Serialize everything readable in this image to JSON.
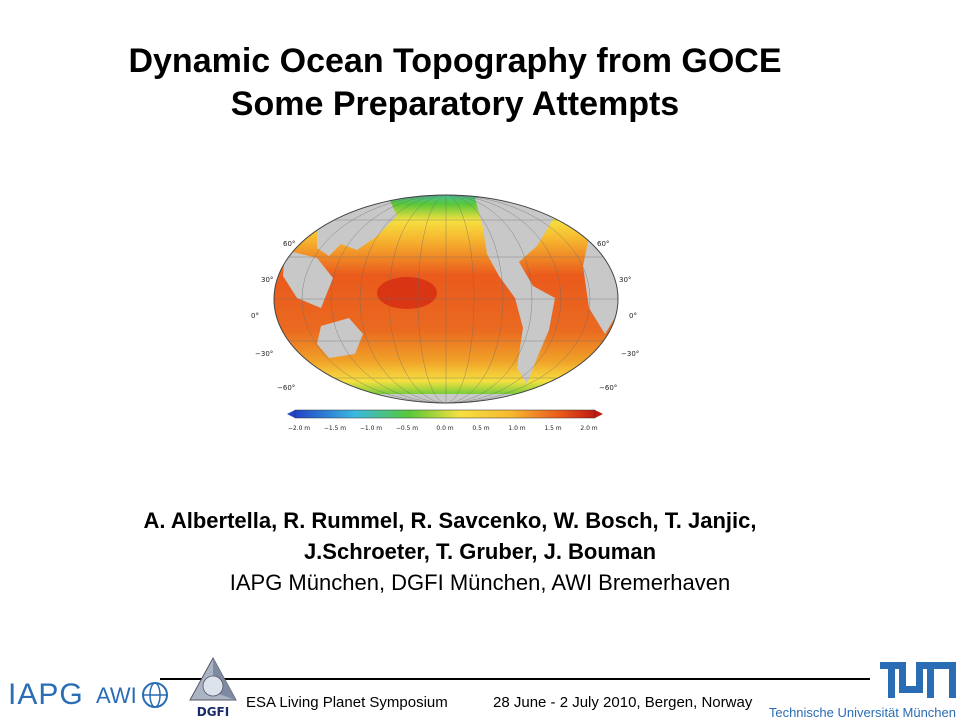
{
  "slide": {
    "title_lines": [
      "Dynamic Ocean Topography from GOCE",
      "Some Preparatory Attempts"
    ],
    "authors_lines": [
      "A. Albertella, R. Rummel, R. Savcenko, W. Bosch, T. Janjic,",
      "J.Schroeter, T. Gruber, J. Bouman"
    ],
    "affiliations": "IAPG München, DGFI München, AWI Bremerhaven"
  },
  "map": {
    "lat_labels": [
      "60°",
      "30°",
      "0°",
      "−30°",
      "−60°"
    ],
    "colorbar_ticks": [
      "−2.0 m",
      "−1.5 m",
      "−1.0 m",
      "−0.5 m",
      "0.0 m",
      "0.5 m",
      "1.0 m",
      "1.5 m",
      "2.0 m"
    ],
    "colors": {
      "land": "#c8c8c8",
      "warm": "#ea5a1c",
      "hot": "#d42a12",
      "mid": "#f6b830",
      "green": "#58c838",
      "cyan": "#3ab8e0",
      "blue": "#2244c8"
    }
  },
  "footer": {
    "iapg": "IAPG",
    "awi": "AWI",
    "dgfi": "DGFI",
    "event": "ESA Living Planet Symposium",
    "dates": "28 June - 2 July 2010, Bergen, Norway",
    "tum_name": "Technische Universität München",
    "accent": "#2a6db4"
  }
}
